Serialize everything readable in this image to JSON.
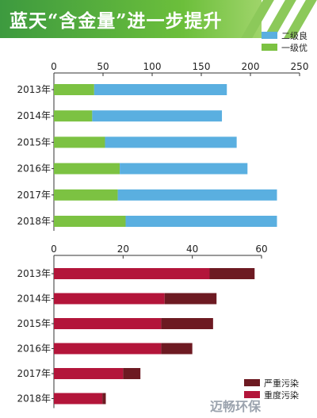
{
  "title": "蓝天“含金量”进一步提升",
  "watermark": "迈畅环保",
  "colors": {
    "good_grade1": "#7cc242",
    "good_grade2": "#5aafe0",
    "polluted_heavy": "#b3153a",
    "polluted_severe": "#6d1a22",
    "axis": "#333333"
  },
  "chart_data": [
    {
      "type": "bar",
      "orientation": "horizontal",
      "stacked": true,
      "categories": [
        "2013年",
        "2014年",
        "2015年",
        "2016年",
        "2017年",
        "2018年"
      ],
      "series": [
        {
          "name": "一级优",
          "values": [
            41,
            39,
            52,
            67,
            65,
            73
          ]
        },
        {
          "name": "二级良",
          "values": [
            135,
            132,
            134,
            130,
            162,
            154
          ]
        }
      ],
      "xlim": [
        0,
        250
      ],
      "xticks": [
        0,
        50,
        100,
        150,
        200,
        250
      ],
      "axis_position": "top",
      "legend": "top-right"
    },
    {
      "type": "bar",
      "orientation": "horizontal",
      "stacked": true,
      "categories": [
        "2013年",
        "2014年",
        "2015年",
        "2016年",
        "2017年",
        "2018年"
      ],
      "series": [
        {
          "name": "重度污染",
          "values": [
            45,
            32,
            31,
            31,
            20,
            14
          ]
        },
        {
          "name": "严重污染",
          "values": [
            13,
            15,
            15,
            9,
            5,
            1
          ]
        }
      ],
      "xlim": [
        0,
        60
      ],
      "xticks": [
        0,
        20,
        40,
        60
      ],
      "axis_position": "top",
      "legend": "bottom-right"
    }
  ]
}
